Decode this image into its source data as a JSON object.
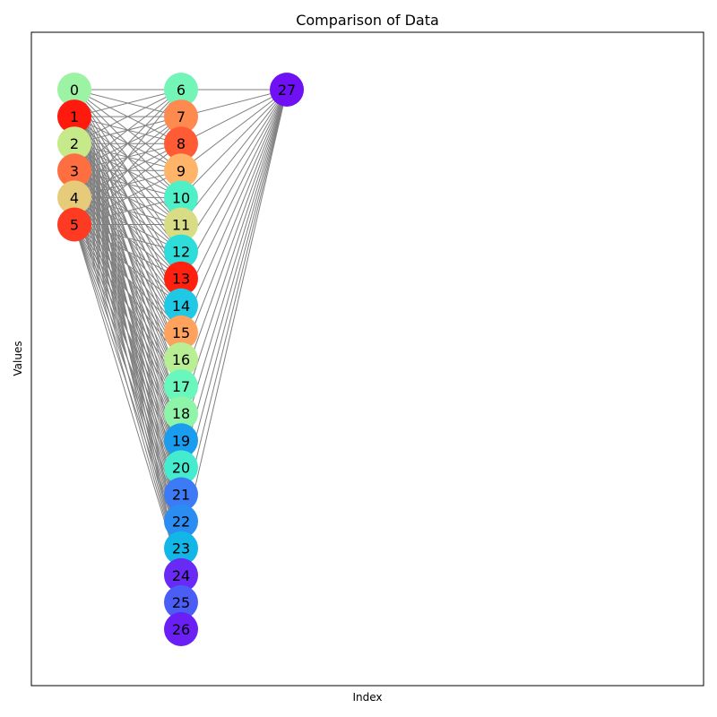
{
  "figure": {
    "title": "Comparison of Data",
    "xlabel": "Index",
    "ylabel": "Values"
  },
  "graph": {
    "layers": [
      [
        0,
        1,
        2,
        3,
        4,
        5
      ],
      [
        6,
        7,
        8,
        9,
        10,
        11,
        12,
        13,
        14,
        15,
        16,
        17,
        18,
        19,
        20,
        21,
        22,
        23,
        24,
        25,
        26
      ],
      [
        27
      ]
    ],
    "node_colors": {
      "0": "#9cf3a4",
      "1": "#ff1a0d",
      "2": "#c6e98a",
      "3": "#ff6e40",
      "4": "#e6cc7a",
      "5": "#ff3a22",
      "6": "#73f5b8",
      "7": "#ff8a50",
      "8": "#ff5b35",
      "9": "#ffb46a",
      "10": "#4fefc8",
      "11": "#d8dc84",
      "12": "#2edcda",
      "13": "#ff2010",
      "14": "#1fc8e4",
      "15": "#ffa25e",
      "16": "#b8ef94",
      "17": "#6af7be",
      "18": "#8ef4a8",
      "19": "#1a9cef",
      "20": "#45ebcf",
      "21": "#3c7bf5",
      "22": "#2b8cf2",
      "23": "#12b7e8",
      "24": "#6a2af5",
      "25": "#4a5ef5",
      "26": "#6a1ff5",
      "27": "#7010f5"
    },
    "edge_color": "#808080",
    "edges": {
      "bipartite_1": {
        "from": [
          0,
          1,
          2,
          3,
          4,
          5
        ],
        "to": [
          6,
          7,
          8,
          9,
          10,
          11,
          12,
          13,
          14,
          15,
          16,
          17,
          18,
          19,
          20,
          21,
          22,
          23,
          24
        ]
      },
      "bipartite_2": {
        "from": [
          6,
          7,
          8,
          9,
          10,
          11,
          12,
          13,
          14,
          15,
          16,
          17,
          18,
          19,
          20,
          21,
          22,
          23
        ],
        "to": [
          27
        ]
      },
      "extra": [
        [
          0,
          27
        ]
      ]
    }
  }
}
